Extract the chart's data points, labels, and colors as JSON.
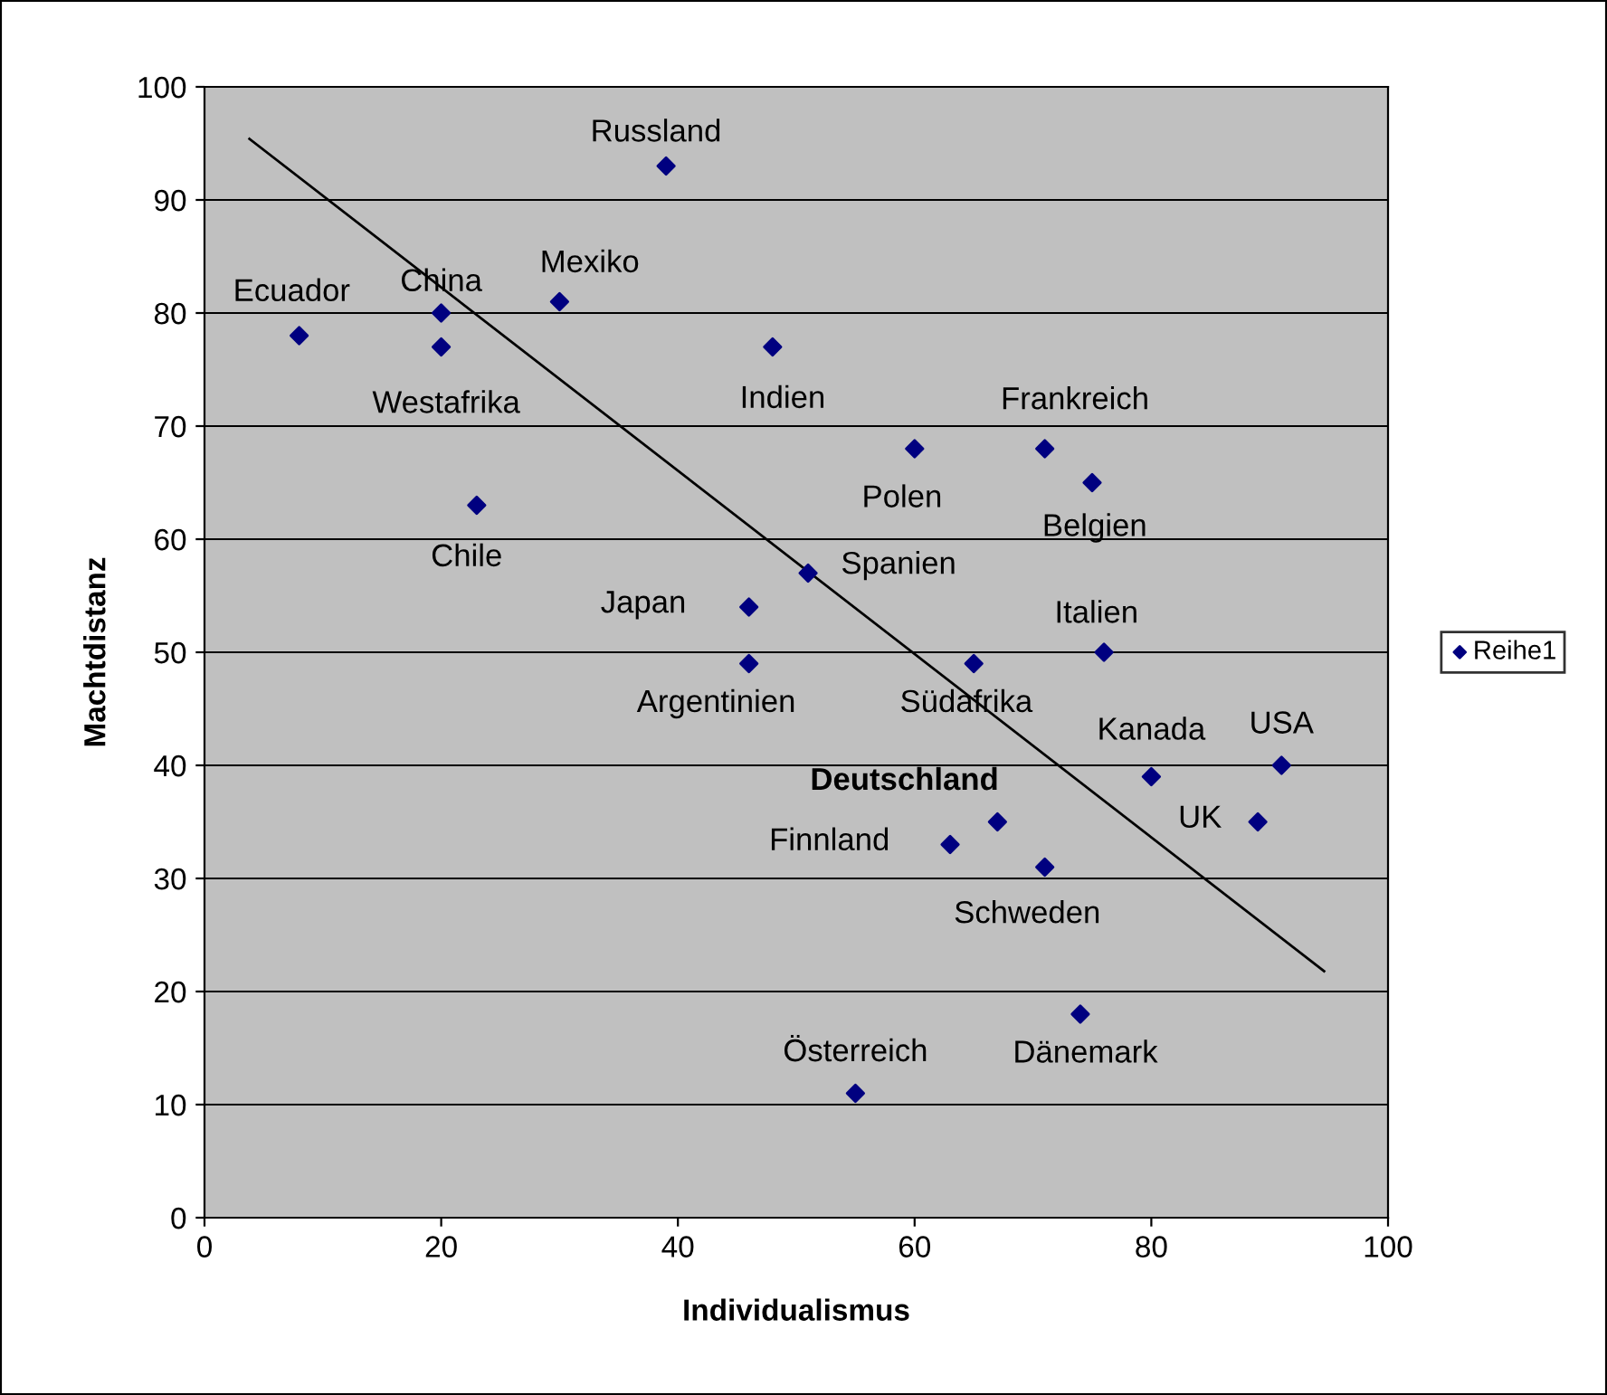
{
  "chart_data": {
    "type": "scatter",
    "xlabel": "Individualismus",
    "ylabel": "Machtdistanz",
    "xlim": [
      0,
      100
    ],
    "ylim": [
      0,
      100
    ],
    "xticks": [
      0,
      20,
      40,
      60,
      80,
      100
    ],
    "yticks": [
      0,
      10,
      20,
      30,
      40,
      50,
      60,
      70,
      80,
      90,
      100
    ],
    "grid": "y",
    "legend": "right",
    "series": [
      {
        "name": "Reihe1",
        "color": "#000080",
        "marker": "diamond",
        "x": [
          8,
          20,
          20,
          23,
          30,
          39,
          48,
          60,
          71,
          75,
          51,
          46,
          46,
          65,
          76,
          80,
          91,
          89,
          67,
          63,
          71,
          74,
          55
        ],
        "values": [
          78,
          80,
          77,
          63,
          81,
          93,
          77,
          68,
          68,
          65,
          57,
          54,
          49,
          49,
          50,
          39,
          40,
          35,
          35,
          33,
          31,
          18,
          11
        ]
      },
      {
        "type": "line",
        "color": "#000000",
        "x": [
          3.8,
          94.6
        ],
        "values": [
          95.4,
          21.8
        ]
      }
    ],
    "annotations": [
      {
        "text": "Ecuador",
        "x": 8,
        "y": 78
      },
      {
        "text": "China",
        "x": 20,
        "y": 80
      },
      {
        "text": "Westafrika",
        "x": 20,
        "y": 77
      },
      {
        "text": "Chile",
        "x": 23,
        "y": 63
      },
      {
        "text": "Mexiko",
        "x": 30,
        "y": 81
      },
      {
        "text": "Russland",
        "x": 39,
        "y": 93
      },
      {
        "text": "Indien",
        "x": 48,
        "y": 77
      },
      {
        "text": "Polen",
        "x": 60,
        "y": 68
      },
      {
        "text": "Frankreich",
        "x": 71,
        "y": 68
      },
      {
        "text": "Belgien",
        "x": 75,
        "y": 65
      },
      {
        "text": "Spanien",
        "x": 51,
        "y": 57
      },
      {
        "text": "Japan",
        "x": 46,
        "y": 54
      },
      {
        "text": "Argentinien",
        "x": 46,
        "y": 49
      },
      {
        "text": "Südafrika",
        "x": 65,
        "y": 49
      },
      {
        "text": "Italien",
        "x": 76,
        "y": 50
      },
      {
        "text": "Kanada",
        "x": 80,
        "y": 39
      },
      {
        "text": "USA",
        "x": 91,
        "y": 40
      },
      {
        "text": "UK",
        "x": 89,
        "y": 35
      },
      {
        "text": "Deutschland",
        "x": 67,
        "y": 35
      },
      {
        "text": "Finnland",
        "x": 63,
        "y": 33
      },
      {
        "text": "Schweden",
        "x": 71,
        "y": 31
      },
      {
        "text": "Dänemark",
        "x": 74,
        "y": 18
      },
      {
        "text": "Österreich",
        "x": 55,
        "y": 11
      }
    ]
  }
}
